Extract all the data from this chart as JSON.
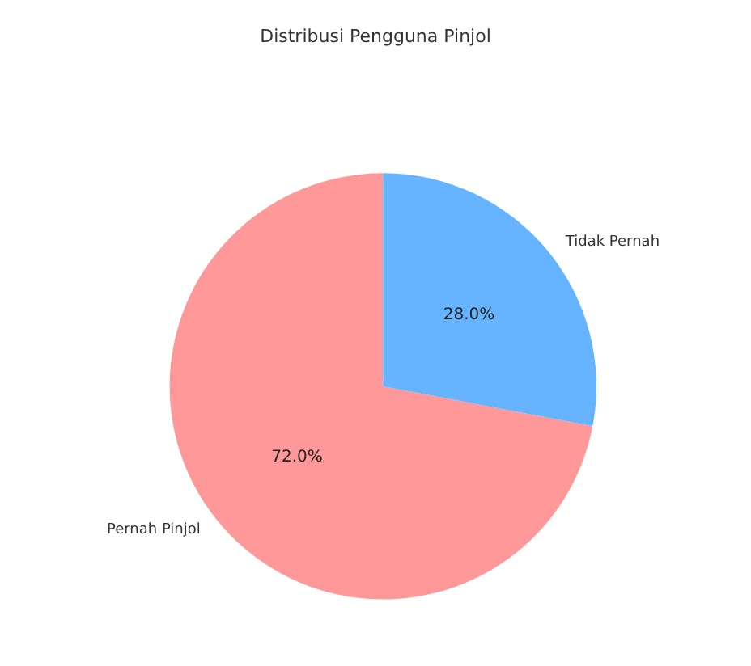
{
  "chart_data": {
    "type": "pie",
    "title": "Distribusi Pengguna Pinjol",
    "categories": [
      "Pernah Pinjol",
      "Tidak Pernah"
    ],
    "values": [
      72,
      28
    ],
    "colors": [
      "#ff9999",
      "#66b3ff"
    ],
    "value_labels": [
      "72.0%",
      "28.0%"
    ],
    "legend": false
  }
}
